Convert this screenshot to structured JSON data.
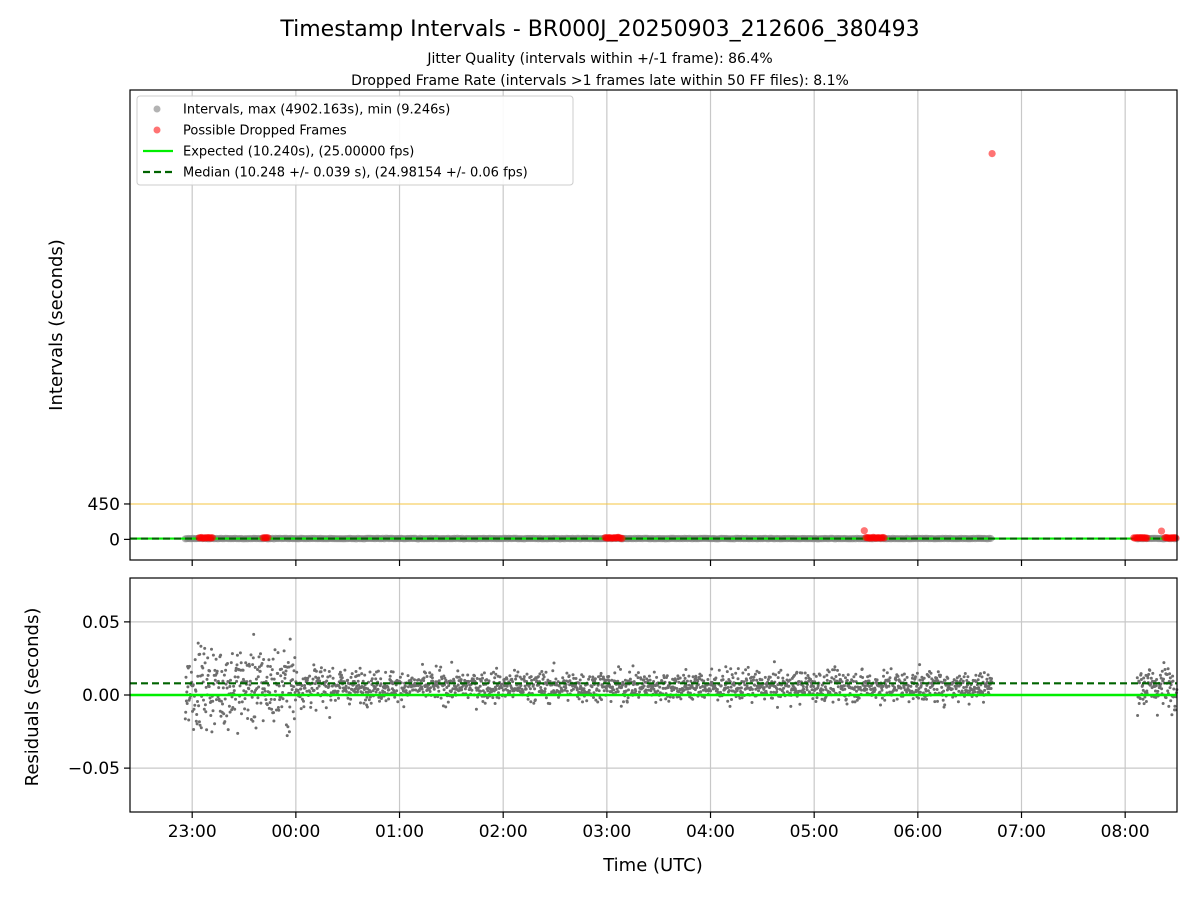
{
  "figure": {
    "title": "Timestamp Intervals - BR000J_20250903_212606_380493",
    "subtitle_1": "Jitter Quality (intervals within +/-1 frame): 86.4%",
    "subtitle_2": "Dropped Frame Rate (intervals >1 frames late within 50 FF files): 8.1%"
  },
  "colors": {
    "intervals": "#808080",
    "dropped": "#ff0000",
    "expected": "#00ee00",
    "median": "#006400",
    "threshold": "#f5c542",
    "grid": "#c8c8c8",
    "residuals": "#6e6e6e"
  },
  "chart_data": [
    {
      "type": "scatter",
      "panel": "top",
      "ylabel": "Intervals (seconds)",
      "xlim": [
        "22:24",
        "08:30"
      ],
      "ylim": [
        -262,
        5710
      ],
      "yticks": [
        0,
        450
      ],
      "xticks": [
        "23:00",
        "00:00",
        "01:00",
        "02:00",
        "03:00",
        "04:00",
        "05:00",
        "06:00",
        "07:00",
        "08:00"
      ],
      "grid_x": true,
      "legend": {
        "position": "top-left",
        "entries": [
          "Intervals, max (4902.163s), min (9.246s)",
          "Possible Dropped Frames",
          "Expected (10.240s), (25.00000 fps)",
          "Median (10.248 +/- 0.039 s), (24.98154 +/- 0.06 fps)"
        ]
      },
      "threshold_line": 450,
      "expected": 10.24,
      "median": 10.248,
      "interval_bands": [
        [
          "22:56",
          "06:43"
        ],
        [
          "08:07",
          "08:30"
        ]
      ],
      "dropped_clusters": [
        [
          "23:04",
          "23:12"
        ],
        [
          "23:41",
          "23:44"
        ],
        [
          "02:59",
          "03:09"
        ],
        [
          "05:30",
          "05:41"
        ],
        [
          "08:05",
          "08:13"
        ],
        [
          "08:23",
          "08:30"
        ]
      ],
      "outliers": [
        {
          "x": "06:43",
          "y": 4902.163
        },
        {
          "x": "05:29",
          "y": 110
        },
        {
          "x": "08:21",
          "y": 105
        }
      ]
    },
    {
      "type": "scatter",
      "panel": "bottom",
      "xlabel": "Time (UTC)",
      "ylabel": "Residuals (seconds)",
      "xlim": [
        "22:24",
        "08:30"
      ],
      "ylim": [
        -0.08,
        0.08
      ],
      "yticks": [
        "0.05",
        "0.00",
        "−0.05"
      ],
      "ytick_values": [
        0.05,
        0.0,
        -0.05
      ],
      "grid": true,
      "expected_residual": 0.0,
      "median_residual": 0.008,
      "data_ranges": [
        [
          "22:56",
          "06:43"
        ],
        [
          "08:07",
          "08:30"
        ]
      ]
    }
  ]
}
